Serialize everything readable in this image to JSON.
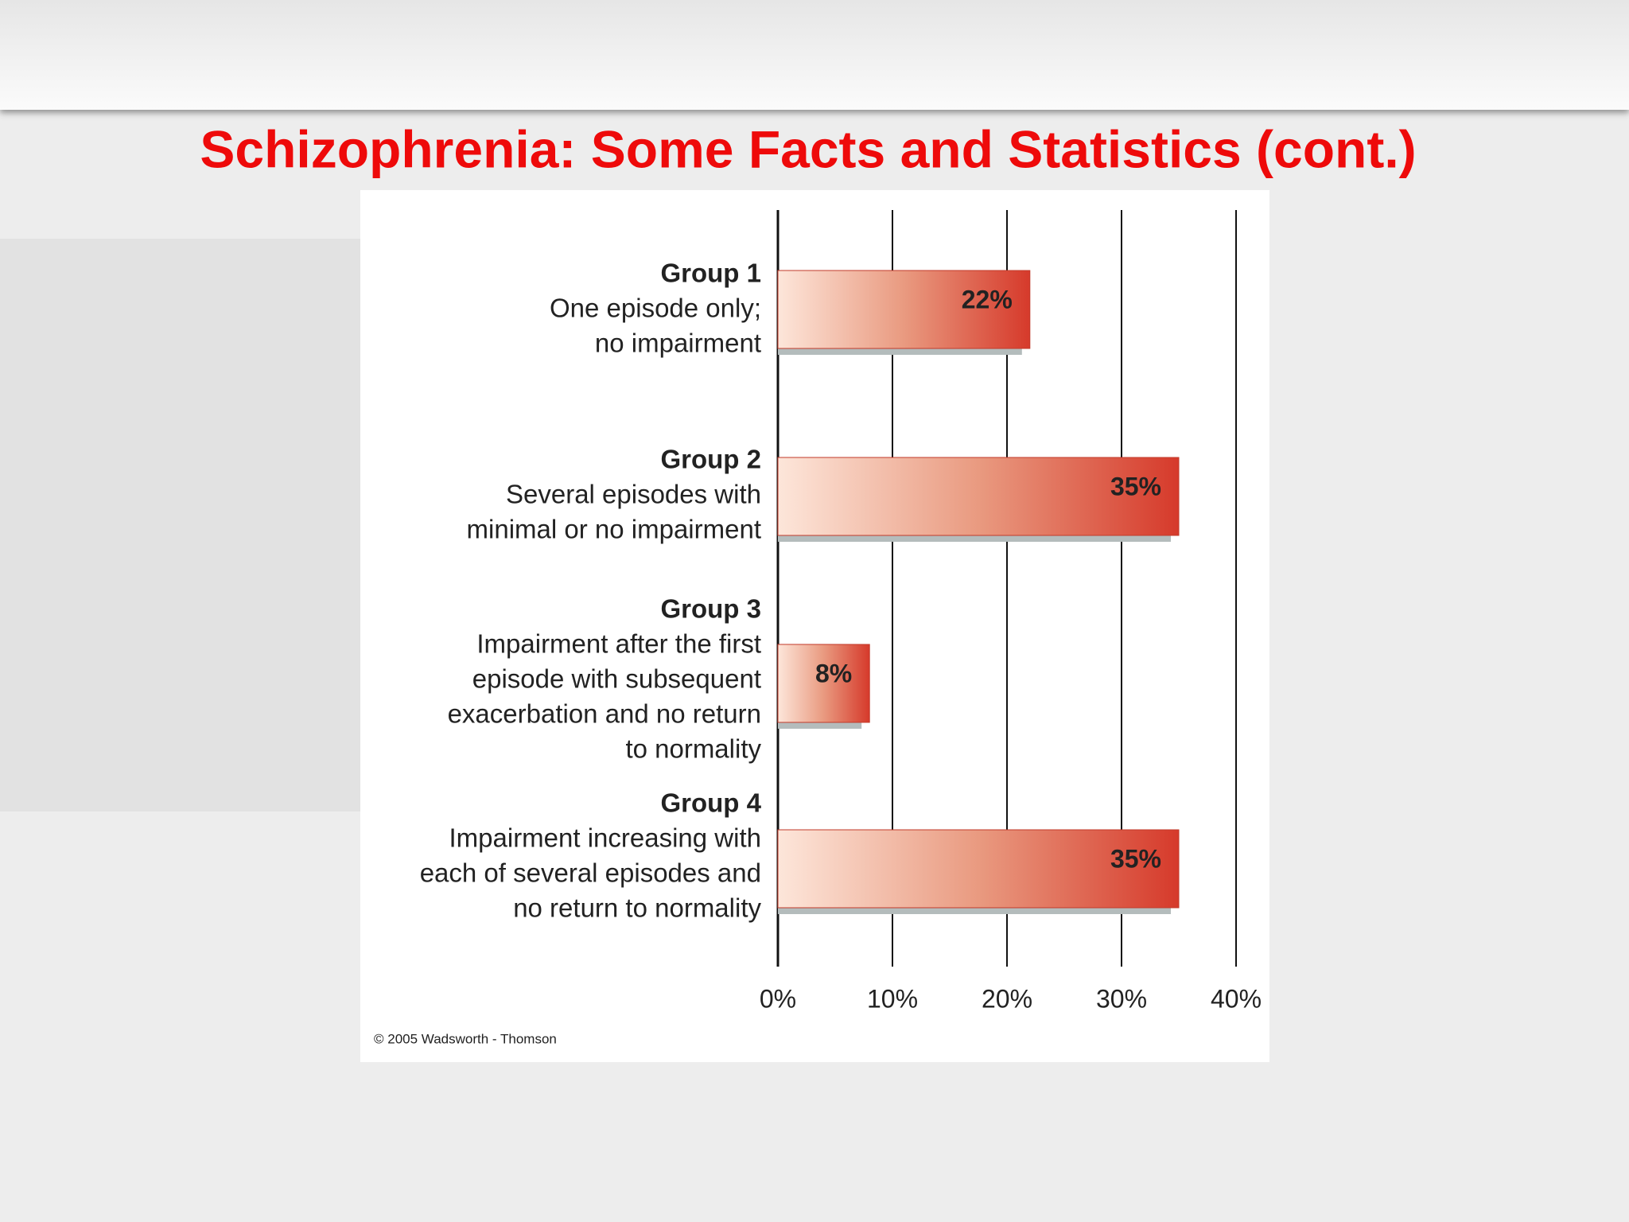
{
  "chart_data": {
    "type": "hbar",
    "title": "Schizophrenia:  Some Facts and Statistics (cont.)",
    "categories": [
      "Group 1",
      "Group 2",
      "Group 3",
      "Group 4"
    ],
    "descriptions": [
      [
        "One episode only;",
        "no impairment"
      ],
      [
        "Several episodes with",
        "minimal or no impairment"
      ],
      [
        "Impairment after the first",
        "episode with subsequent",
        "exacerbation and no return",
        "to normality"
      ],
      [
        "Impairment increasing with",
        "each of several episodes and",
        "no return to normality"
      ]
    ],
    "values": [
      22,
      35,
      8,
      35
    ],
    "value_labels": [
      "22%",
      "35%",
      "8%",
      "35%"
    ],
    "color": "#d8402e",
    "xlim": [
      0,
      40
    ],
    "xticks": [
      {
        "value": 0,
        "label": "0%"
      },
      {
        "value": 10,
        "label": "10%"
      },
      {
        "value": 20,
        "label": "20%"
      },
      {
        "value": 30,
        "label": "30%"
      },
      {
        "value": 40,
        "label": "40%"
      }
    ],
    "grid": true,
    "source": "© 2005 Wadsworth - Thomson"
  }
}
